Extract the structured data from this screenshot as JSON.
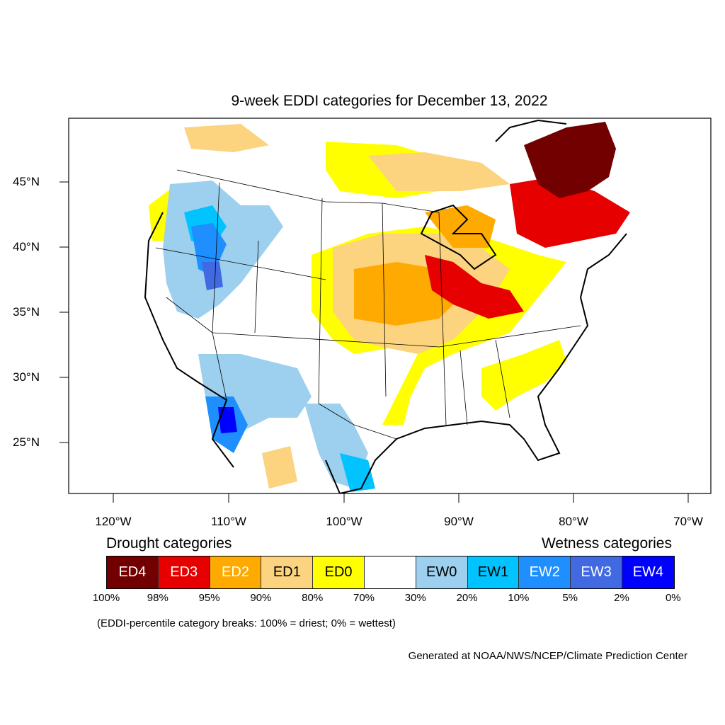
{
  "title": "9-week EDDI categories for December 13, 2022",
  "lat_labels": [
    "45°N",
    "40°N",
    "35°N",
    "30°N",
    "25°N"
  ],
  "lon_labels": [
    "120°W",
    "110°W",
    "100°W",
    "90°W",
    "80°W",
    "70°W"
  ],
  "legend": {
    "drought_title": "Drought categories",
    "wetness_title": "Wetness categories",
    "categories": [
      {
        "label": "ED4",
        "color": "#730000",
        "text_color": "#ffffff"
      },
      {
        "label": "ED3",
        "color": "#e60000",
        "text_color": "#ffffff"
      },
      {
        "label": "ED2",
        "color": "#ffaa00",
        "text_color": "#ffffff"
      },
      {
        "label": "ED1",
        "color": "#fcd37f",
        "text_color": "#000000"
      },
      {
        "label": "ED0",
        "color": "#ffff00",
        "text_color": "#000000"
      },
      {
        "label": "",
        "color": "#ffffff",
        "text_color": "#000000"
      },
      {
        "label": "EW0",
        "color": "#9dcfee",
        "text_color": "#000000"
      },
      {
        "label": "EW1",
        "color": "#00c3ff",
        "text_color": "#000000"
      },
      {
        "label": "EW2",
        "color": "#1f8fff",
        "text_color": "#ffffff"
      },
      {
        "label": "EW3",
        "color": "#4169e1",
        "text_color": "#ffffff"
      },
      {
        "label": "EW4",
        "color": "#0000ff",
        "text_color": "#ffffff"
      }
    ],
    "breaks": [
      "100%",
      "98%",
      "95%",
      "90%",
      "80%",
      "70%",
      "30%",
      "20%",
      "10%",
      "5%",
      "2%",
      "0%"
    ]
  },
  "note": "(EDDI-percentile category breaks: 100% = driest; 0% = wettest)",
  "credit": "Generated at NOAA/NWS/NCEP/Climate Prediction Center"
}
